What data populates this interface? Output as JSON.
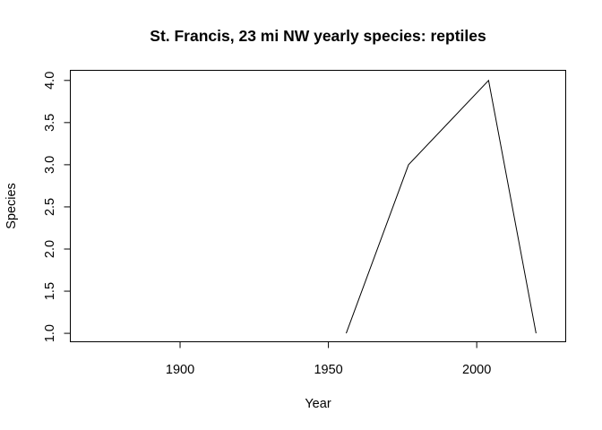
{
  "chart_data": {
    "type": "line",
    "title": "St. Francis, 23 mi NW yearly species: reptiles",
    "xlabel": "Year",
    "ylabel": "Species",
    "xlim": [
      1863,
      2030
    ],
    "ylim": [
      0.9,
      4.12
    ],
    "xticks": [
      1900,
      1950,
      2000
    ],
    "yticks": [
      1.0,
      1.5,
      2.0,
      2.5,
      3.0,
      3.5,
      4.0
    ],
    "ytick_labels": [
      "1.0",
      "1.5",
      "2.0",
      "2.5",
      "3.0",
      "3.5",
      "4.0"
    ],
    "grid": false,
    "legend": false,
    "series": [
      {
        "x": [
          1956,
          1977,
          2004,
          2020
        ],
        "y": [
          1,
          3,
          4,
          1
        ]
      }
    ],
    "line_color": "#000000"
  }
}
